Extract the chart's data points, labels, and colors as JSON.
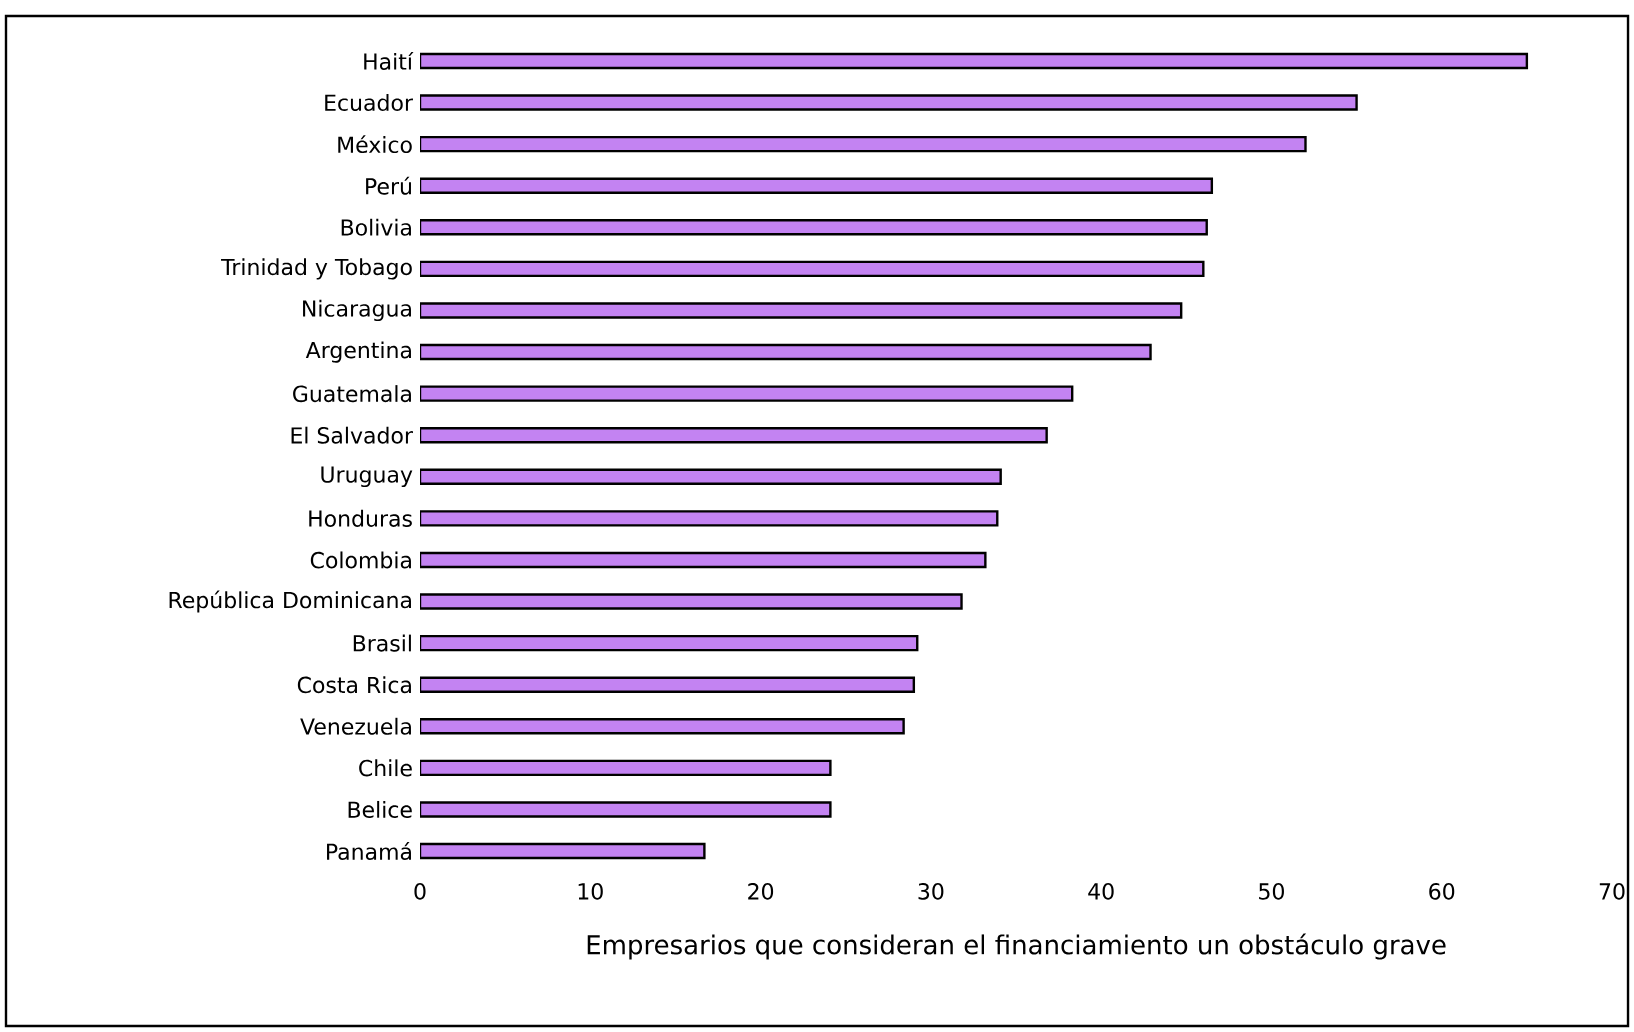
{
  "chart_data": {
    "type": "bar",
    "orientation": "horizontal",
    "xlabel": "Empresarios que consideran el financiamiento un obstáculo grave",
    "categories": [
      "Haití",
      "Ecuador",
      "México",
      "Perú",
      "Bolivia",
      "Trinidad y Tobago",
      "Nicaragua",
      "Argentina",
      "Guatemala",
      "El Salvador",
      "Uruguay",
      "Honduras",
      "Colombia",
      "República Dominicana",
      "Brasil",
      "Costa Rica",
      "Venezuela",
      "Chile",
      "Belice",
      "Panamá"
    ],
    "values": [
      65,
      55,
      52,
      46.5,
      46.2,
      46,
      44.7,
      42.9,
      38.3,
      36.8,
      34.1,
      33.9,
      33.2,
      31.8,
      29.2,
      29,
      28.4,
      24.1,
      24.1,
      16.7
    ],
    "color": "#c383f2",
    "xlim": [
      0,
      70
    ],
    "xticks": [
      0,
      10,
      20,
      30,
      40,
      50,
      60,
      70
    ],
    "grid": false
  }
}
